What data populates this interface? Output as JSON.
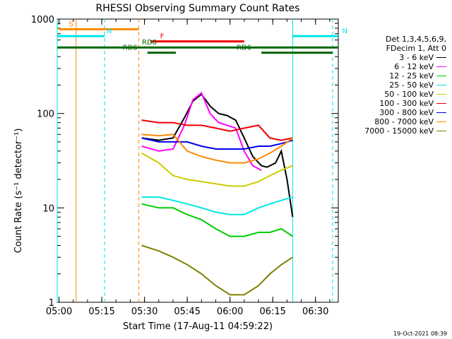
{
  "chart_data": {
    "type": "line",
    "title": "RHESSI Observing Summary Count Rates",
    "xlabel": "Start Time (17-Aug-11 04:59:22)",
    "ylabel": "Count Rate (s⁻¹ detector⁻¹)",
    "yscale": "log",
    "ylim": [
      1,
      1000
    ],
    "xlim": [
      "04:59:22",
      "06:38:00"
    ],
    "x_ticks": [
      "05:00",
      "05:15",
      "05:30",
      "05:45",
      "06:00",
      "06:15",
      "06:30"
    ],
    "y_ticks": [
      "1",
      "10",
      "100",
      "1000"
    ],
    "legend_header": [
      "Det 1,3,4,5,6,9,",
      "FDecim 1, Att 0"
    ],
    "series": [
      {
        "name": "3 - 6 keV",
        "color": "#000000",
        "x": [
          "05:29",
          "05:35",
          "05:40",
          "05:44",
          "05:47",
          "05:50",
          "05:53",
          "05:56",
          "05:59",
          "06:02",
          "06:05",
          "06:08",
          "06:11",
          "06:13",
          "06:16",
          "06:18",
          "06:20",
          "06:22"
        ],
        "values": [
          55,
          52,
          55,
          90,
          135,
          160,
          120,
          100,
          95,
          85,
          55,
          35,
          28,
          27,
          30,
          40,
          20,
          8
        ]
      },
      {
        "name": "6 - 12 keV",
        "color": "#ff00ff",
        "x": [
          "05:29",
          "05:35",
          "05:40",
          "05:44",
          "05:47",
          "05:50",
          "05:53",
          "05:56",
          "05:59",
          "06:02",
          "06:05",
          "06:08",
          "06:11"
        ],
        "values": [
          45,
          40,
          42,
          75,
          140,
          165,
          100,
          80,
          75,
          70,
          40,
          28,
          25
        ]
      },
      {
        "name": "12 - 25 keV",
        "color": "#00cc00",
        "x": [
          "05:29",
          "05:35",
          "05:40",
          "05:45",
          "05:50",
          "05:55",
          "06:00",
          "06:05",
          "06:10",
          "06:14",
          "06:18",
          "06:22"
        ],
        "values": [
          11,
          10,
          10,
          8.5,
          7.5,
          6,
          5,
          5,
          5.5,
          5.5,
          6,
          5
        ]
      },
      {
        "name": "25 - 50 keV",
        "color": "#00e5e5",
        "x": [
          "05:29",
          "05:35",
          "05:40",
          "05:45",
          "05:50",
          "05:55",
          "06:00",
          "06:05",
          "06:10",
          "06:14",
          "06:18",
          "06:22"
        ],
        "values": [
          13,
          13,
          12,
          11,
          10,
          9,
          8.5,
          8.5,
          10,
          11,
          12,
          13
        ]
      },
      {
        "name": "50 - 100 keV",
        "color": "#cccc00",
        "x": [
          "05:29",
          "05:35",
          "05:40",
          "05:45",
          "05:50",
          "05:55",
          "06:00",
          "06:05",
          "06:10",
          "06:14",
          "06:18",
          "06:22"
        ],
        "values": [
          38,
          30,
          22,
          20,
          19,
          18,
          17,
          17,
          19,
          22,
          25,
          28
        ]
      },
      {
        "name": "100 - 300 keV",
        "color": "#ee0000",
        "x": [
          "05:29",
          "05:35",
          "05:40",
          "05:45",
          "05:50",
          "05:55",
          "06:00",
          "06:05",
          "06:10",
          "06:14",
          "06:18",
          "06:22"
        ],
        "values": [
          85,
          80,
          80,
          75,
          75,
          70,
          65,
          70,
          75,
          55,
          52,
          55
        ]
      },
      {
        "name": "300 - 800 keV",
        "color": "#0000ee",
        "x": [
          "05:29",
          "05:35",
          "05:40",
          "05:45",
          "05:50",
          "05:55",
          "06:00",
          "06:05",
          "06:10",
          "06:14",
          "06:18",
          "06:22"
        ],
        "values": [
          55,
          50,
          50,
          50,
          45,
          42,
          42,
          42,
          45,
          45,
          48,
          52
        ]
      },
      {
        "name": "800 - 7000 keV",
        "color": "#ff8800",
        "x": [
          "05:29",
          "05:35",
          "05:40",
          "05:45",
          "05:50",
          "05:55",
          "06:00",
          "06:05",
          "06:10",
          "06:14",
          "06:18",
          "06:22"
        ],
        "values": [
          60,
          58,
          60,
          40,
          35,
          32,
          30,
          30,
          33,
          38,
          45,
          55
        ]
      },
      {
        "name": "7000 - 15000 keV",
        "color": "#808000",
        "x": [
          "05:29",
          "05:35",
          "05:40",
          "05:45",
          "05:50",
          "05:55",
          "06:00",
          "06:05",
          "06:10",
          "06:14",
          "06:18",
          "06:22"
        ],
        "values": [
          4,
          3.5,
          3,
          2.5,
          2,
          1.5,
          1.2,
          1.2,
          1.5,
          2,
          2.5,
          3
        ]
      }
    ],
    "flag_bars": [
      {
        "label": "S",
        "color": "#ff8800",
        "start": "05:00",
        "end": "05:28",
        "level": 780
      },
      {
        "label": "N",
        "color": "#00e5e5",
        "start": "04:59:22",
        "end": "05:16",
        "level": 660
      },
      {
        "label": "N",
        "color": "#00e5e5",
        "start": "06:22",
        "end": "06:38",
        "level": 660
      },
      {
        "label": "F",
        "color": "#ee0000",
        "start": "05:32",
        "end": "06:05",
        "level": 580
      },
      {
        "label": "RD0",
        "color": "#006600",
        "start": "04:59:22",
        "end": "06:38",
        "level": 500
      },
      {
        "label": "RD6",
        "color": "#006600",
        "start": "05:31",
        "end": "05:41",
        "level": 440
      },
      {
        "label": "RD6",
        "color": "#006600",
        "start": "06:11",
        "end": "06:36",
        "level": 440
      }
    ],
    "vlines": [
      {
        "t": "04:59:22",
        "color": "#00e5e5",
        "style": "solid"
      },
      {
        "t": "05:06",
        "color": "#ff8800",
        "style": "solid"
      },
      {
        "t": "05:16",
        "color": "#00e5e5",
        "style": "dashed"
      },
      {
        "t": "05:28",
        "color": "#ff8800",
        "style": "dashed"
      },
      {
        "t": "06:22",
        "color": "#00e5e5",
        "style": "solid"
      },
      {
        "t": "06:36",
        "color": "#00e5e5",
        "style": "dashed"
      }
    ],
    "grid": false,
    "legend_position": "right"
  },
  "timestamp": "19-Oct-2021 08:39"
}
